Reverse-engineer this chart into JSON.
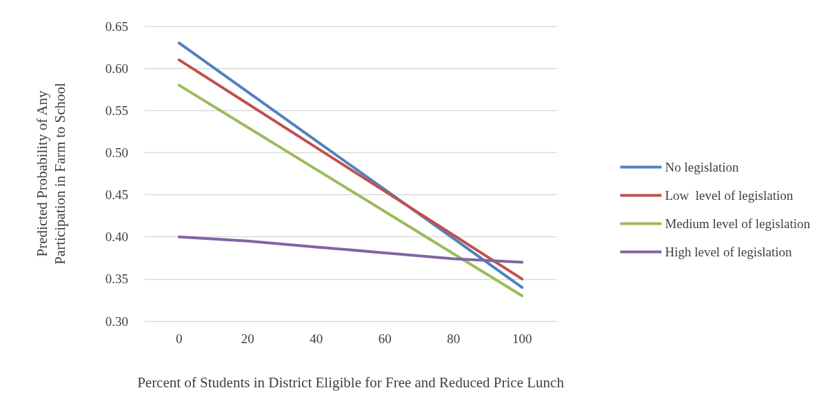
{
  "chart_data": {
    "type": "line",
    "xlabel": "Percent of Students in District Eligible for Free and Reduced Price Lunch",
    "ylabel": "Predicted Probability of Any\nParticipation in Farm to School",
    "categories": [
      "0",
      "20",
      "40",
      "60",
      "80",
      "100"
    ],
    "ylim": [
      0.3,
      0.65
    ],
    "yticks": [
      {
        "value": 0.3,
        "label": "0.30"
      },
      {
        "value": 0.35,
        "label": "0.35"
      },
      {
        "value": 0.4,
        "label": "0.40"
      },
      {
        "value": 0.45,
        "label": "0.45"
      },
      {
        "value": 0.5,
        "label": "0.50"
      },
      {
        "value": 0.55,
        "label": "0.55"
      },
      {
        "value": 0.6,
        "label": "0.60"
      },
      {
        "value": 0.65,
        "label": "0.65"
      }
    ],
    "grid": "y",
    "legend": "right",
    "marker": "none",
    "line_style": "solid",
    "series": [
      {
        "name": "No legislation",
        "color": "#4f81bd",
        "values": [
          0.63,
          0.572,
          0.514,
          0.456,
          0.398,
          0.34
        ]
      },
      {
        "name": "Low  level of legislation",
        "color": "#c0504d",
        "values": [
          0.61,
          0.558,
          0.506,
          0.454,
          0.402,
          0.35
        ]
      },
      {
        "name": "Medium level of legislation",
        "color": "#9bbb59",
        "values": [
          0.58,
          0.53,
          0.48,
          0.43,
          0.38,
          0.33
        ]
      },
      {
        "name": "High level of legislation",
        "color": "#8064a2",
        "values": [
          0.4,
          0.395,
          0.388,
          0.381,
          0.374,
          0.37
        ]
      }
    ]
  }
}
